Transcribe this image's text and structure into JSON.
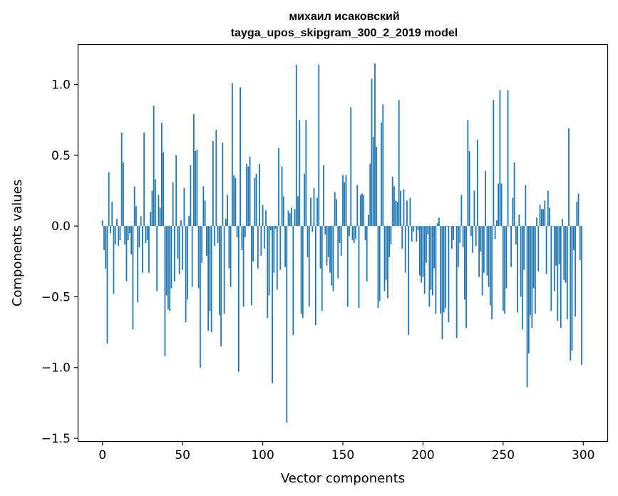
{
  "chart_data": {
    "type": "bar",
    "title_line1": "михаил исаковский",
    "title_line2": "tayga_upos_skipgram_300_2_2019 model",
    "xlabel": "Vector components",
    "ylabel": "Components values",
    "xlim": [
      -15,
      315
    ],
    "ylim": [
      -1.52,
      1.28
    ],
    "xticks": [
      0,
      50,
      100,
      150,
      200,
      250,
      300
    ],
    "xtick_labels": [
      "0",
      "50",
      "100",
      "150",
      "200",
      "250",
      "300"
    ],
    "yticks": [
      -1.5,
      -1.0,
      -0.5,
      0.0,
      0.5,
      1.0
    ],
    "ytick_labels": [
      "−1.5",
      "−1.0",
      "−0.5",
      "0.0",
      "0.5",
      "1.0"
    ],
    "bar_color": "#1f77b4",
    "grid": false,
    "values": [
      0.04,
      -0.17,
      -0.3,
      -0.83,
      0.38,
      -0.05,
      0.17,
      -0.48,
      -0.13,
      0.05,
      -0.14,
      -0.1,
      0.66,
      0.45,
      -0.13,
      -0.39,
      -0.1,
      -0.05,
      -0.2,
      -0.73,
      0.28,
      0.14,
      -0.54,
      -0.15,
      0.07,
      -0.33,
      0.66,
      -0.12,
      -0.1,
      -0.33,
      0.1,
      0.25,
      0.85,
      0.33,
      -0.46,
      0.22,
      0.13,
      0.73,
      0.52,
      -0.92,
      -0.49,
      -0.59,
      -0.6,
      -0.44,
      0.31,
      -0.39,
      0.5,
      -0.23,
      -0.34,
      0.04,
      -0.31,
      0.27,
      -0.68,
      -0.52,
      0.07,
      0.43,
      -0.43,
      0.79,
      0.53,
      0.54,
      -0.44,
      -1.0,
      -0.26,
      0.28,
      0.18,
      -0.21,
      -0.74,
      -0.6,
      -0.75,
      0.6,
      -0.14,
      0.68,
      -0.12,
      -0.63,
      -0.85,
      0.59,
      -0.62,
      0.05,
      0.22,
      -0.3,
      -0.43,
      1.01,
      0.36,
      0.34,
      -0.08,
      -1.03,
      0.98,
      -0.17,
      -0.57,
      -0.08,
      0.44,
      0.42,
      0.49,
      -0.56,
      -0.25,
      0.34,
      0.37,
      -0.3,
      0.44,
      -0.21,
      0.15,
      -0.16,
      0.11,
      -0.65,
      -0.49,
      -0.03,
      -1.11,
      -0.33,
      -0.02,
      -0.45,
      0.55,
      -0.31,
      0.42,
      0.21,
      -0.29,
      -1.39,
      0.11,
      0.09,
      0.13,
      -0.77,
      0.12,
      1.14,
      0.21,
      0.75,
      -0.62,
      -0.65,
      0.37,
      0.75,
      -0.22,
      -0.57,
      0.2,
      -0.04,
      0.27,
      -0.7,
      0.2,
      1.14,
      -0.3,
      -0.6,
      0.43,
      -0.06,
      -0.28,
      -0.22,
      -0.33,
      -0.42,
      -0.46,
      0.24,
      0.19,
      -0.37,
      -0.12,
      -0.21,
      0.36,
      0.31,
      0.36,
      -0.57,
      -0.07,
      0.84,
      -0.1,
      -0.12,
      -0.09,
      0.29,
      -0.58,
      0.22,
      0.23,
      0.22,
      -0.1,
      -0.39,
      0.08,
      0.44,
      1.04,
      0.63,
      1.15,
      0.56,
      -0.58,
      -0.53,
      0.73,
      0.86,
      -0.46,
      -0.38,
      -0.51,
      -0.22,
      -0.13,
      0.35,
      0.28,
      0.18,
      0.17,
      0.89,
      0.25,
      -0.16,
      0.26,
      -0.33,
      0.18,
      -0.77,
      0.2,
      -0.11,
      -0.04,
      0.0,
      -0.11,
      -0.03,
      -0.35,
      -0.4,
      -0.36,
      -0.48,
      -0.26,
      -0.06,
      -0.57,
      -0.45,
      -0.49,
      -0.3,
      -0.62,
      0.02,
      0.06,
      -0.62,
      -0.8,
      -0.61,
      -0.58,
      0.0,
      -0.68,
      0.0,
      -0.16,
      -0.1,
      0.0,
      -0.79,
      -0.29,
      -0.12,
      0.22,
      -0.15,
      -0.52,
      -0.72,
      0.75,
      0.53,
      -0.07,
      -0.19,
      0.25,
      -0.14,
      0.61,
      -0.36,
      -0.18,
      -0.49,
      -0.33,
      0.39,
      -0.35,
      -0.43,
      -0.56,
      -0.66,
      0.89,
      -0.09,
      0.04,
      0.3,
      0.96,
      0.3,
      -0.6,
      -0.62,
      -0.44,
      0.96,
      0.0,
      -0.29,
      0.2,
      0.45,
      -0.13,
      -0.61,
      0.08,
      -0.5,
      -0.73,
      -0.31,
      0.29,
      -1.14,
      -0.9,
      -0.63,
      -0.72,
      -0.44,
      -0.62,
      0.06,
      -0.32,
      0.15,
      0.12,
      0.12,
      0.18,
      -0.34,
      0.25,
      0.13,
      -0.6,
      0.0,
      -0.46,
      -0.28,
      -0.67,
      -0.27,
      -0.72,
      0.05,
      -0.38,
      -0.4,
      -0.66,
      0.69,
      -0.95,
      -0.88,
      -0.17,
      -0.64,
      0.17,
      0.23,
      -0.24,
      -0.98
    ]
  }
}
